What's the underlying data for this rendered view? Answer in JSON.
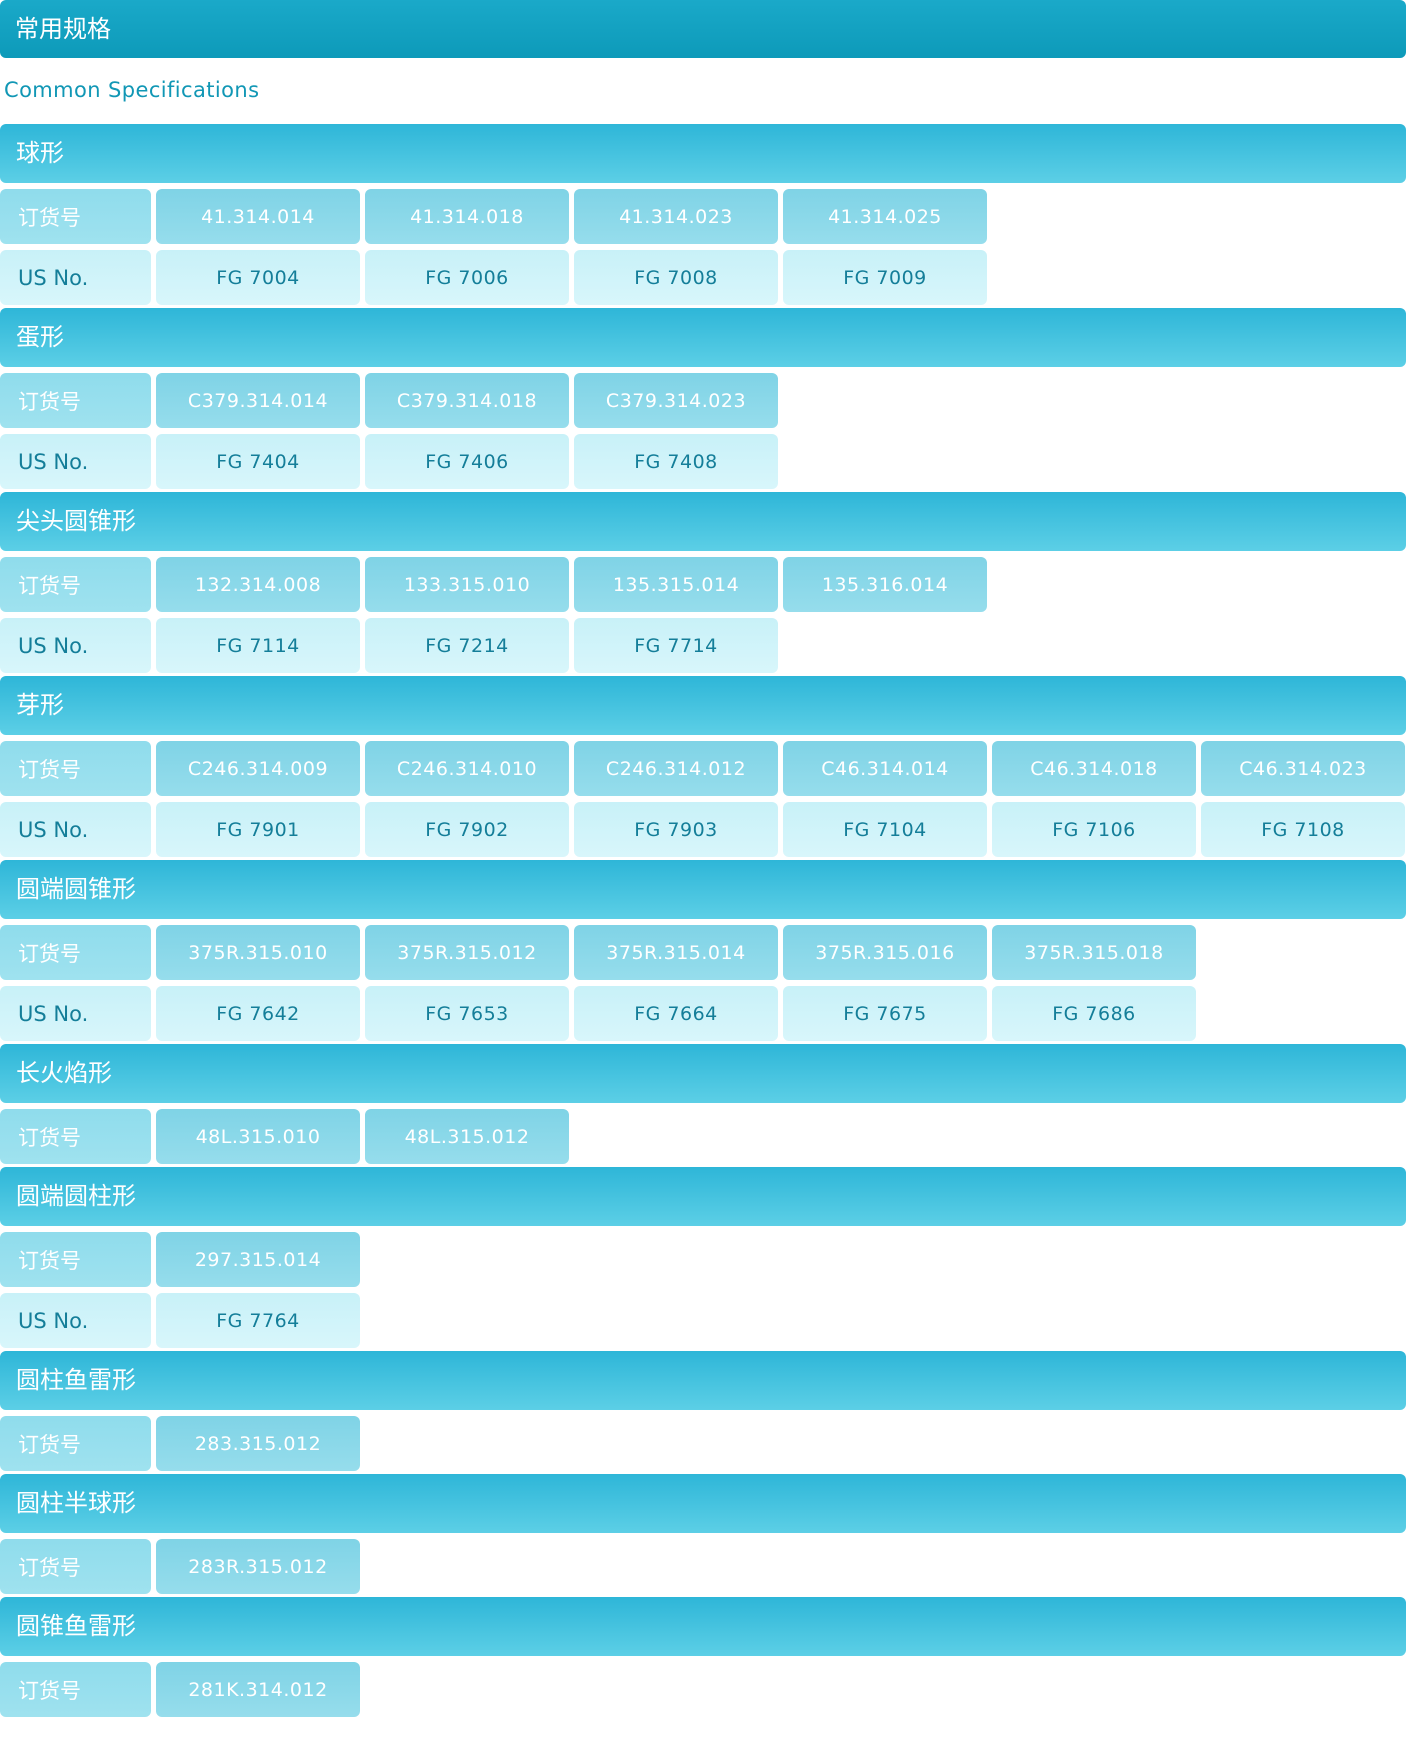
{
  "title": "常用规格",
  "subtitle": "Common Specifications",
  "sections": [
    {
      "name": "球形",
      "rows": [
        {
          "type": "order",
          "label": "订货号",
          "values": [
            "41.314.014",
            "41.314.018",
            "41.314.023",
            "41.314.025"
          ]
        },
        {
          "type": "us",
          "label": "US No.",
          "values": [
            "FG 7004",
            "FG 7006",
            "FG 7008",
            "FG 7009"
          ]
        }
      ]
    },
    {
      "name": "蛋形",
      "rows": [
        {
          "type": "order",
          "label": "订货号",
          "values": [
            "C379.314.014",
            "C379.314.018",
            "C379.314.023"
          ]
        },
        {
          "type": "us",
          "label": "US No.",
          "values": [
            "FG 7404",
            "FG 7406",
            "FG 7408"
          ]
        }
      ]
    },
    {
      "name": "尖头圆锥形",
      "rows": [
        {
          "type": "order",
          "label": "订货号",
          "values": [
            "132.314.008",
            "133.315.010",
            "135.315.014",
            "135.316.014"
          ]
        },
        {
          "type": "us",
          "label": "US No.",
          "values": [
            "FG 7114",
            "FG 7214",
            "FG 7714"
          ]
        }
      ]
    },
    {
      "name": "芽形",
      "rows": [
        {
          "type": "order",
          "label": "订货号",
          "values": [
            "C246.314.009",
            "C246.314.010",
            "C246.314.012",
            "C46.314.014",
            "C46.314.018",
            "C46.314.023"
          ]
        },
        {
          "type": "us",
          "label": "US No.",
          "values": [
            "FG 7901",
            "FG 7902",
            "FG 7903",
            "FG 7104",
            "FG 7106",
            "FG 7108"
          ]
        }
      ]
    },
    {
      "name": "圆端圆锥形",
      "rows": [
        {
          "type": "order",
          "label": "订货号",
          "values": [
            "375R.315.010",
            "375R.315.012",
            "375R.315.014",
            "375R.315.016",
            "375R.315.018"
          ]
        },
        {
          "type": "us",
          "label": "US No.",
          "values": [
            "FG 7642",
            "FG 7653",
            "FG 7664",
            "FG 7675",
            "FG 7686"
          ]
        }
      ]
    },
    {
      "name": "长火焰形",
      "rows": [
        {
          "type": "order",
          "label": "订货号",
          "values": [
            "48L.315.010",
            "48L.315.012"
          ]
        }
      ]
    },
    {
      "name": "圆端圆柱形",
      "rows": [
        {
          "type": "order",
          "label": "订货号",
          "values": [
            "297.315.014"
          ]
        },
        {
          "type": "us",
          "label": "US No.",
          "values": [
            "FG 7764"
          ]
        }
      ]
    },
    {
      "name": "圆柱鱼雷形",
      "rows": [
        {
          "type": "order",
          "label": "订货号",
          "values": [
            "283.315.012"
          ]
        }
      ]
    },
    {
      "name": "圆柱半球形",
      "rows": [
        {
          "type": "order",
          "label": "订货号",
          "values": [
            "283R.315.012"
          ]
        }
      ]
    },
    {
      "name": "圆锥鱼雷形",
      "rows": [
        {
          "type": "order",
          "label": "订货号",
          "values": [
            "281K.314.012"
          ]
        }
      ]
    }
  ]
}
